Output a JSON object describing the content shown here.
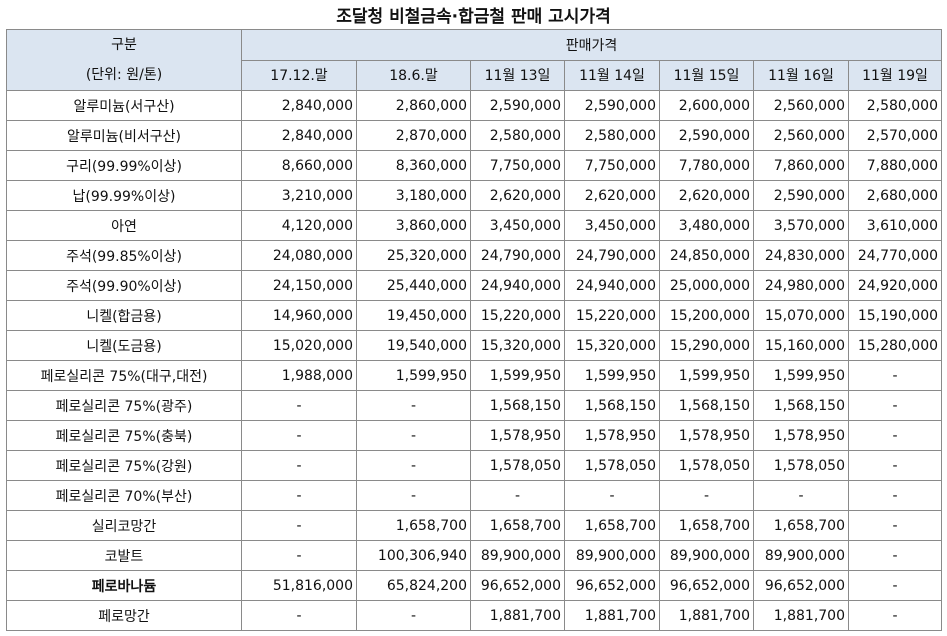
{
  "title": "조달청 비철금속·합금철 판매 고시가격",
  "header": {
    "category": [
      "구분",
      "(단위: 원/톤)"
    ],
    "group": "판매가격",
    "columns": [
      "17.12.말",
      "18.6.말",
      "11월 13일",
      "11월 14일",
      "11월 15일",
      "11월 16일",
      "11월 19일"
    ]
  },
  "rows": [
    [
      "알루미늄(서구산)",
      "2,840,000",
      "2,860,000",
      "2,590,000",
      "2,590,000",
      "2,600,000",
      "2,560,000",
      "2,580,000"
    ],
    [
      "알루미늄(비서구산)",
      "2,840,000",
      "2,870,000",
      "2,580,000",
      "2,580,000",
      "2,590,000",
      "2,560,000",
      "2,570,000"
    ],
    [
      "구리(99.99%이상)",
      "8,660,000",
      "8,360,000",
      "7,750,000",
      "7,750,000",
      "7,780,000",
      "7,860,000",
      "7,880,000"
    ],
    [
      "납(99.99%이상)",
      "3,210,000",
      "3,180,000",
      "2,620,000",
      "2,620,000",
      "2,620,000",
      "2,590,000",
      "2,680,000"
    ],
    [
      "아연",
      "4,120,000",
      "3,860,000",
      "3,450,000",
      "3,450,000",
      "3,480,000",
      "3,570,000",
      "3,610,000"
    ],
    [
      "주석(99.85%이상)",
      "24,080,000",
      "25,320,000",
      "24,790,000",
      "24,790,000",
      "24,850,000",
      "24,830,000",
      "24,770,000"
    ],
    [
      "주석(99.90%이상)",
      "24,150,000",
      "25,440,000",
      "24,940,000",
      "24,940,000",
      "25,000,000",
      "24,980,000",
      "24,920,000"
    ],
    [
      "니켈(합금용)",
      "14,960,000",
      "19,450,000",
      "15,220,000",
      "15,220,000",
      "15,200,000",
      "15,070,000",
      "15,190,000"
    ],
    [
      "니켈(도금용)",
      "15,020,000",
      "19,540,000",
      "15,320,000",
      "15,320,000",
      "15,290,000",
      "15,160,000",
      "15,280,000"
    ],
    [
      "페로실리콘 75%(대구,대전)",
      "1,988,000",
      "1,599,950",
      "1,599,950",
      "1,599,950",
      "1,599,950",
      "1,599,950",
      "-"
    ],
    [
      "페로실리콘 75%(광주)",
      "-",
      "-",
      "1,568,150",
      "1,568,150",
      "1,568,150",
      "1,568,150",
      "-"
    ],
    [
      "페로실리콘 75%(충북)",
      "-",
      "-",
      "1,578,950",
      "1,578,950",
      "1,578,950",
      "1,578,950",
      "-"
    ],
    [
      "페로실리콘 75%(강원)",
      "-",
      "-",
      "1,578,050",
      "1,578,050",
      "1,578,050",
      "1,578,050",
      "-"
    ],
    [
      "페로실리콘 70%(부산)",
      "-",
      "-",
      "-",
      "-",
      "-",
      "-",
      "-"
    ],
    [
      "실리코망간",
      "-",
      "1,658,700",
      "1,658,700",
      "1,658,700",
      "1,658,700",
      "1,658,700",
      "-"
    ],
    [
      "코발트",
      "-",
      "100,306,940",
      "89,900,000",
      "89,900,000",
      "89,900,000",
      "89,900,000",
      "-"
    ],
    [
      "페로바나듐",
      "51,816,000",
      "65,824,200",
      "96,652,000",
      "96,652,000",
      "96,652,000",
      "96,652,000",
      "-"
    ],
    [
      "페로망간",
      "-",
      "-",
      "1,881,700",
      "1,881,700",
      "1,881,700",
      "1,881,700",
      "-"
    ]
  ]
}
